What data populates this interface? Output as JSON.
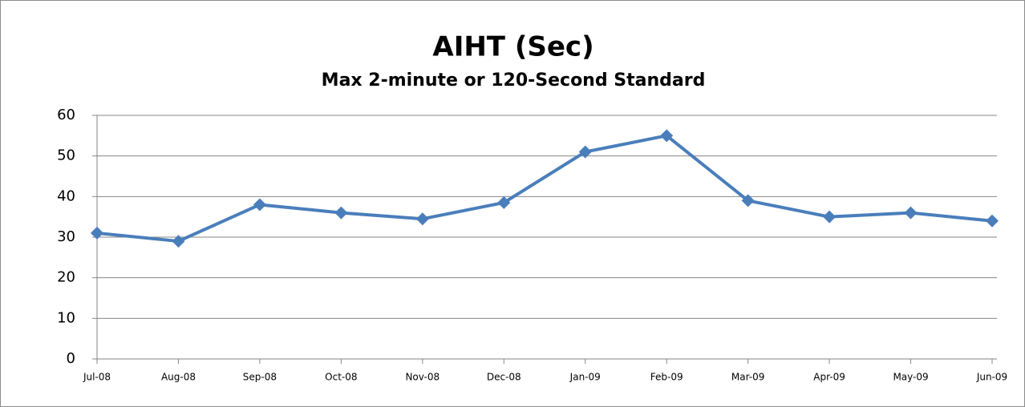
{
  "chart_data": {
    "type": "line",
    "title": "AIHT (Sec)",
    "subtitle": "Max 2-minute or 120-Second Standard",
    "categories": [
      "Jul-08",
      "Aug-08",
      "Sep-08",
      "Oct-08",
      "Nov-08",
      "Dec-08",
      "Jan-09",
      "Feb-09",
      "Mar-09",
      "Apr-09",
      "May-09",
      "Jun-09"
    ],
    "series": [
      {
        "name": "AIHT (Sec)",
        "color": "#4a7ebb",
        "values": [
          31,
          29,
          38,
          36,
          34.5,
          38.5,
          51,
          55,
          39,
          35,
          36,
          34
        ]
      }
    ],
    "ylim": [
      0,
      60
    ],
    "yticks": [
      0,
      10,
      20,
      30,
      40,
      50,
      60
    ],
    "grid": true
  }
}
